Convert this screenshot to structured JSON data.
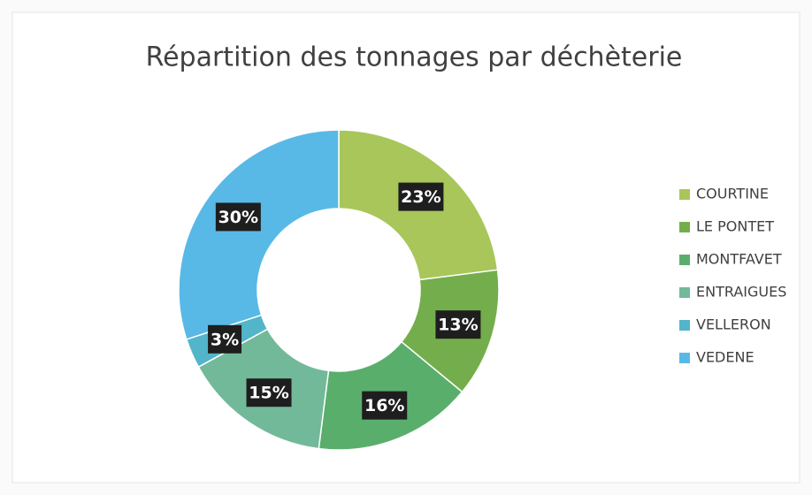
{
  "chart_data": {
    "type": "pie",
    "title": "Répartition des tonnages par déchèterie",
    "categories": [
      "COURTINE",
      "LE PONTET",
      "MONTFAVET",
      "ENTRAIGUES",
      "VELLERON",
      "VEDENE"
    ],
    "values": [
      23,
      13,
      16,
      15,
      3,
      30
    ],
    "value_labels": [
      "23%",
      "13%",
      "16%",
      "15%",
      "3%",
      "30%"
    ],
    "colors": [
      "#a8c65a",
      "#74ae4c",
      "#5aae6c",
      "#72b99a",
      "#52b5c9",
      "#58b9e6"
    ],
    "donut": true,
    "legend": "right"
  }
}
